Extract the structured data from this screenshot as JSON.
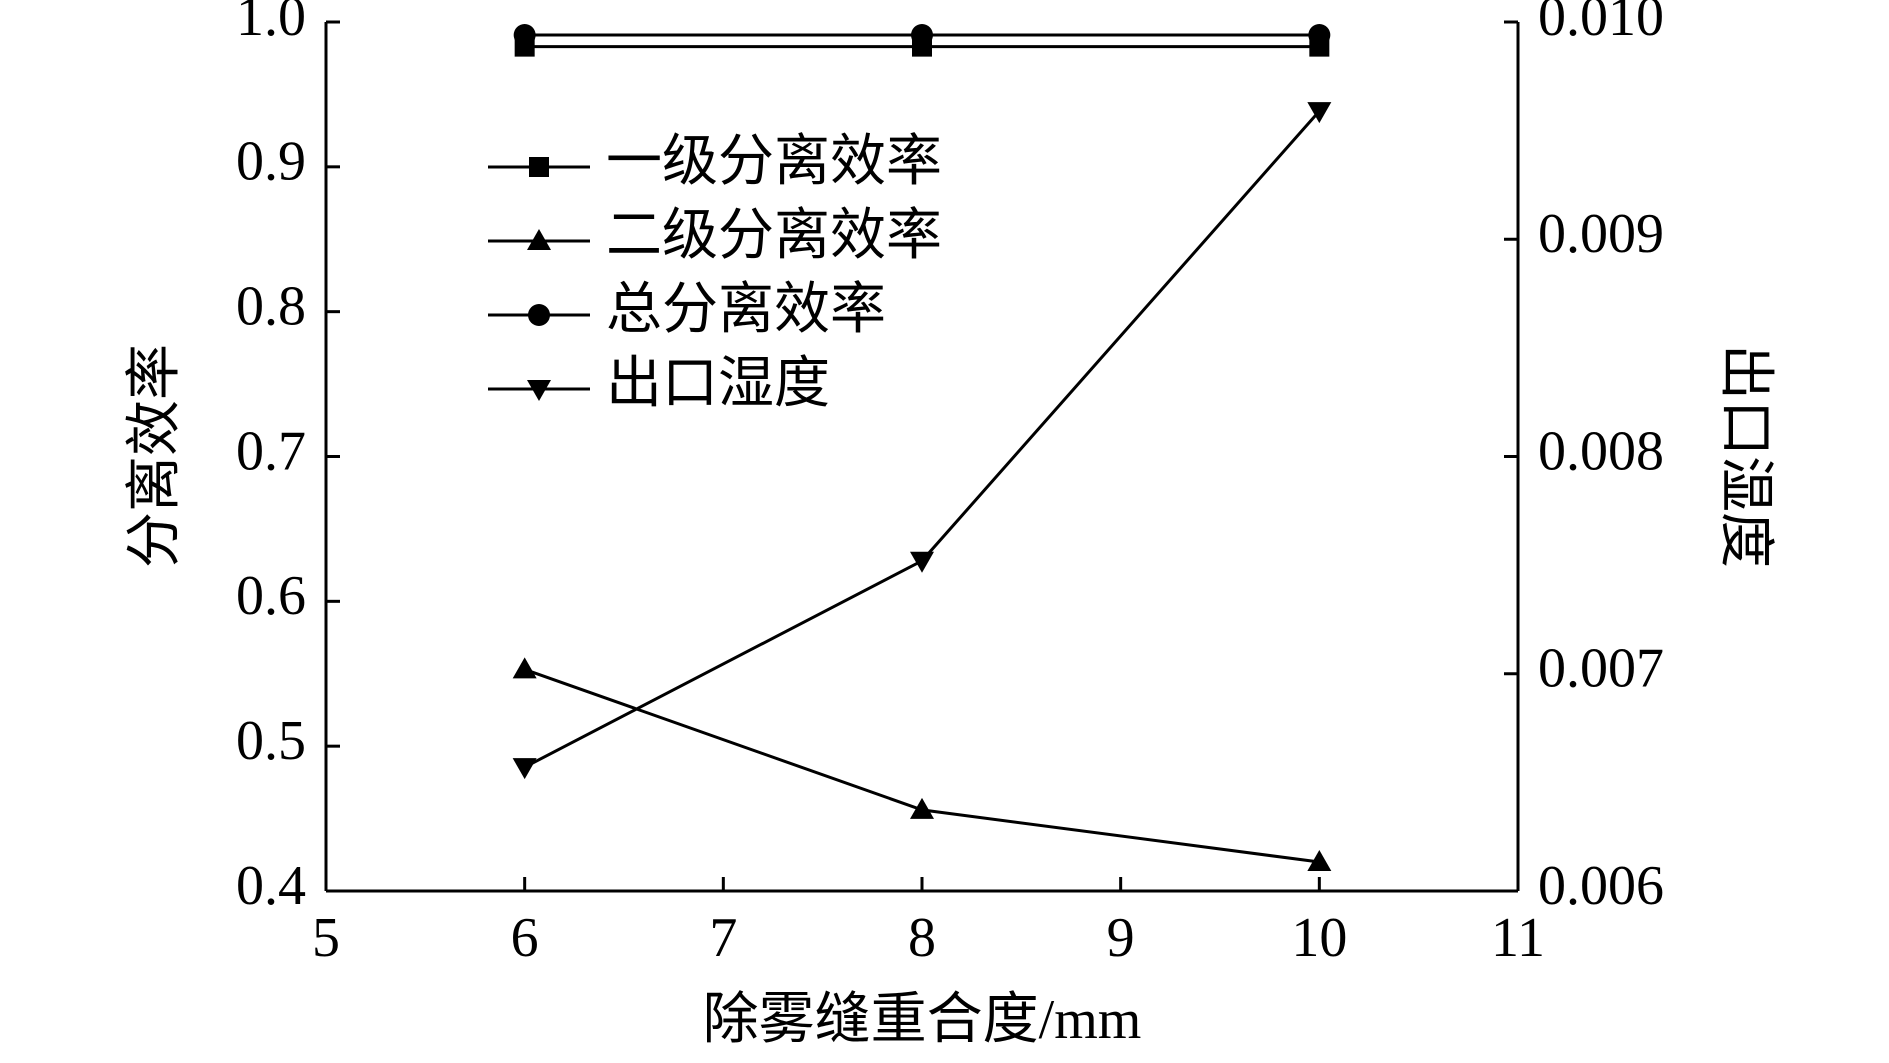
{
  "chart_data": {
    "type": "line",
    "x_label": "除雾缝重合度/mm",
    "y_label": "分离效率",
    "y2_label": "出口湿度",
    "x": [
      6,
      8,
      10
    ],
    "xlim": [
      5,
      11
    ],
    "xticks": [
      5,
      6,
      7,
      8,
      9,
      10,
      11
    ],
    "ylim": [
      0.4,
      1.0
    ],
    "yticks": [
      0.4,
      0.5,
      0.6,
      0.7,
      0.8,
      0.9,
      {
        "value": 1.0,
        "label": "1.0"
      }
    ],
    "y2lim": [
      0.006,
      0.01
    ],
    "y2ticks": [
      0.006,
      0.007,
      0.008,
      0.009,
      {
        "value": 0.01,
        "label": "0.010"
      }
    ],
    "legend": "upper left",
    "series": [
      {
        "name": "一级分离效率",
        "color": "#000000",
        "marker": "square",
        "values": [
          0.983,
          0.983,
          0.983
        ]
      },
      {
        "name": "二级分离效率",
        "color": "#000000",
        "marker": "triangle-up",
        "values": [
          0.553,
          0.456,
          0.42
        ]
      },
      {
        "name": "总分离效率",
        "color": "#000000",
        "marker": "circle",
        "values": [
          0.991,
          0.991,
          0.991
        ]
      },
      {
        "name": "出口湿度",
        "color": "#000000",
        "marker": "triangle-down",
        "axis": "y2",
        "values": [
          0.00657,
          0.00752,
          0.00959
        ]
      }
    ]
  }
}
